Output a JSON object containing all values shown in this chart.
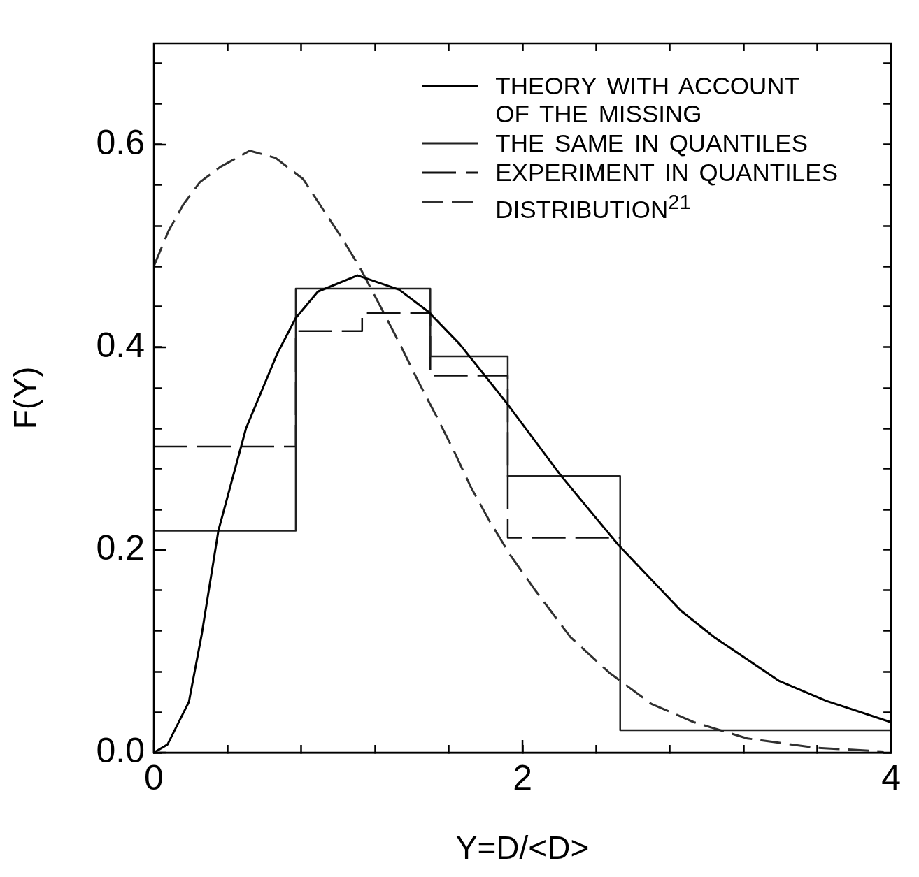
{
  "chart_data": {
    "type": "line",
    "xlabel": "Y=D/<D>",
    "ylabel": "F(Y)",
    "xlim": [
      0,
      4
    ],
    "ylim": [
      0,
      0.7
    ],
    "xticks": [
      0,
      {
        "value": 0.4,
        "label": null
      },
      {
        "value": 0.8,
        "label": null
      },
      {
        "value": 1.2,
        "label": null
      },
      {
        "value": 1.6,
        "label": null
      },
      2,
      {
        "value": 2.4,
        "label": null
      },
      {
        "value": 2.8,
        "label": null
      },
      {
        "value": 3.2,
        "label": null
      },
      {
        "value": 3.6,
        "label": null
      },
      4
    ],
    "yticks": [
      {
        "value": 0,
        "label": "0.0"
      },
      {
        "value": 0.04,
        "label": null
      },
      {
        "value": 0.08,
        "label": null
      },
      {
        "value": 0.12,
        "label": null
      },
      {
        "value": 0.16,
        "label": null
      },
      0.2,
      {
        "value": 0.24,
        "label": null
      },
      {
        "value": 0.28,
        "label": null
      },
      {
        "value": 0.32,
        "label": null
      },
      {
        "value": 0.36,
        "label": null
      },
      0.4,
      {
        "value": 0.44,
        "label": null
      },
      {
        "value": 0.48,
        "label": null
      },
      {
        "value": 0.52,
        "label": null
      },
      {
        "value": 0.56,
        "label": null
      },
      0.6,
      {
        "value": 0.64,
        "label": null
      },
      {
        "value": 0.68,
        "label": null
      }
    ],
    "grid": false,
    "legend": "top right",
    "marker": "none",
    "series": [
      {
        "name": "THEORY WITH ACCOUNT\nOF THE MISSING",
        "type": "line",
        "line_style": "solid",
        "color": "#000000",
        "x": [
          0,
          0.074,
          0.19,
          0.26,
          0.35,
          0.5,
          0.67,
          0.77,
          0.89,
          1.105,
          1.33,
          1.49,
          1.66,
          1.91,
          2.21,
          2.52,
          2.86,
          3.04,
          3.39,
          3.65,
          4.0
        ],
        "values": [
          0,
          0.008,
          0.05,
          0.117,
          0.219,
          0.32,
          0.394,
          0.429,
          0.455,
          0.471,
          0.457,
          0.435,
          0.403,
          0.346,
          0.273,
          0.205,
          0.14,
          0.114,
          0.071,
          0.051,
          0.03
        ]
      },
      {
        "name": "THE SAME IN QUANTILES",
        "type": "step",
        "line_style": "solid",
        "color": "#202020",
        "x": [
          0,
          0.77,
          1.5,
          1.92,
          2.53,
          4
        ],
        "values": [
          0.219,
          0.458,
          0.391,
          0.273,
          0.022,
          0.022
        ]
      },
      {
        "name": "EXPERIMENT IN QUANTILES",
        "type": "step",
        "line_style": "dashed",
        "color": "#101010",
        "x": [
          0,
          0.77,
          1.13,
          1.5,
          1.92,
          2.53
        ],
        "values": [
          0.302,
          0.416,
          0.434,
          0.372,
          0.212,
          0.212
        ]
      },
      {
        "name": "DISTRIBUTION$^{21}$",
        "type": "line",
        "line_style": "dashed",
        "color": "#303030",
        "x": [
          0,
          0.08,
          0.16,
          0.25,
          0.36,
          0.52,
          0.66,
          0.81,
          0.9,
          1.02,
          1.12,
          1.23,
          1.33,
          1.43,
          1.53,
          1.63,
          1.72,
          1.82,
          1.93,
          2.07,
          2.26,
          2.47,
          2.7,
          2.93,
          3.22,
          3.58,
          3.96
        ],
        "values": [
          0.48,
          0.515,
          0.541,
          0.563,
          0.578,
          0.594,
          0.587,
          0.566,
          0.541,
          0.508,
          0.478,
          0.44,
          0.405,
          0.368,
          0.333,
          0.297,
          0.262,
          0.229,
          0.196,
          0.16,
          0.114,
          0.079,
          0.048,
          0.03,
          0.014,
          0.005,
          0.001
        ]
      }
    ]
  }
}
